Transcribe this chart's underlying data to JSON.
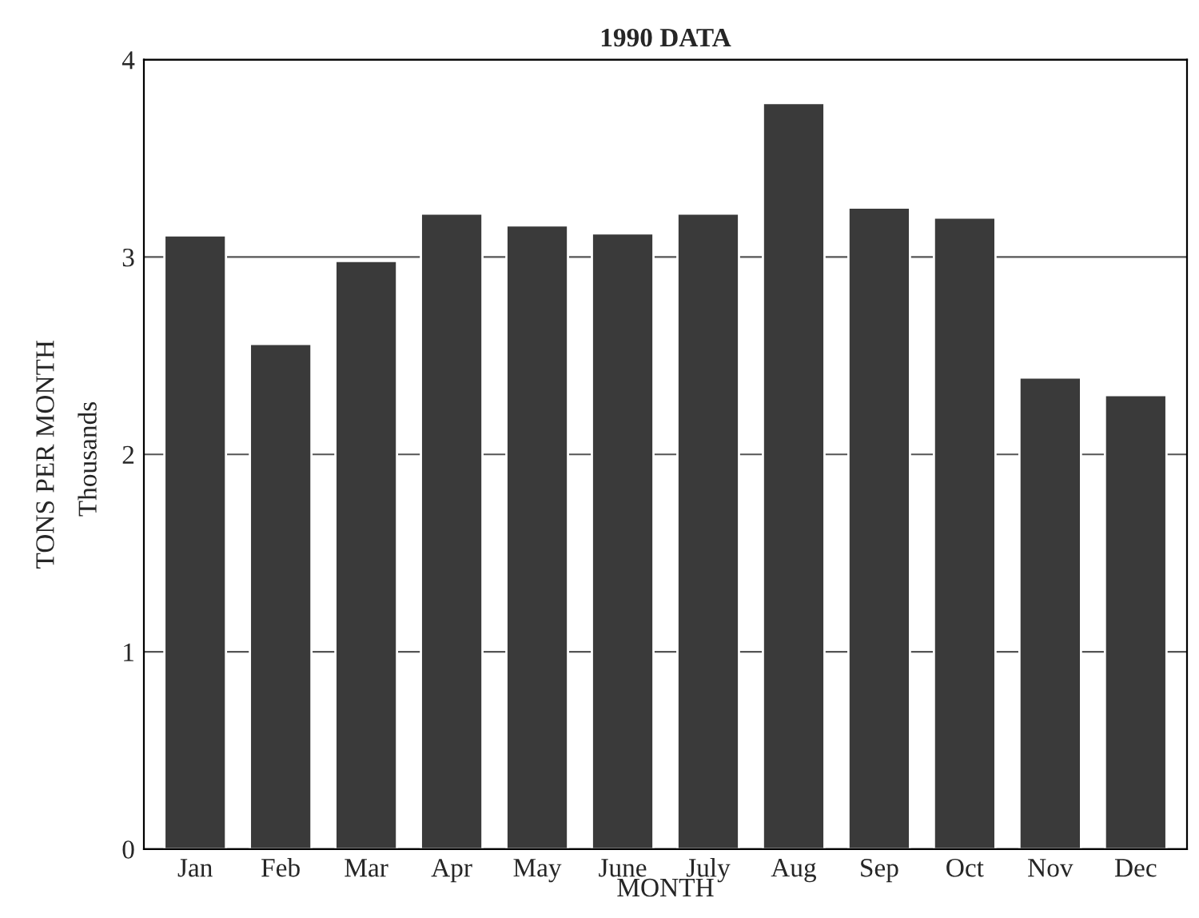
{
  "chart_data": {
    "type": "bar",
    "title": "1990 DATA",
    "xlabel": "MONTH",
    "ylabel": "TONS PER MONTH",
    "annotations": [
      "Thousands"
    ],
    "categories": [
      "Jan",
      "Feb",
      "Mar",
      "Apr",
      "May",
      "June",
      "July",
      "Aug",
      "Sep",
      "Oct",
      "Nov",
      "Dec"
    ],
    "values": [
      3.11,
      2.56,
      2.98,
      3.22,
      3.16,
      3.12,
      3.22,
      3.78,
      3.25,
      3.2,
      2.39,
      2.3
    ],
    "color": "#3a3a3a",
    "ylim": [
      0,
      4
    ],
    "yticks": [
      0,
      1,
      2,
      3,
      4
    ],
    "grid": "y"
  }
}
